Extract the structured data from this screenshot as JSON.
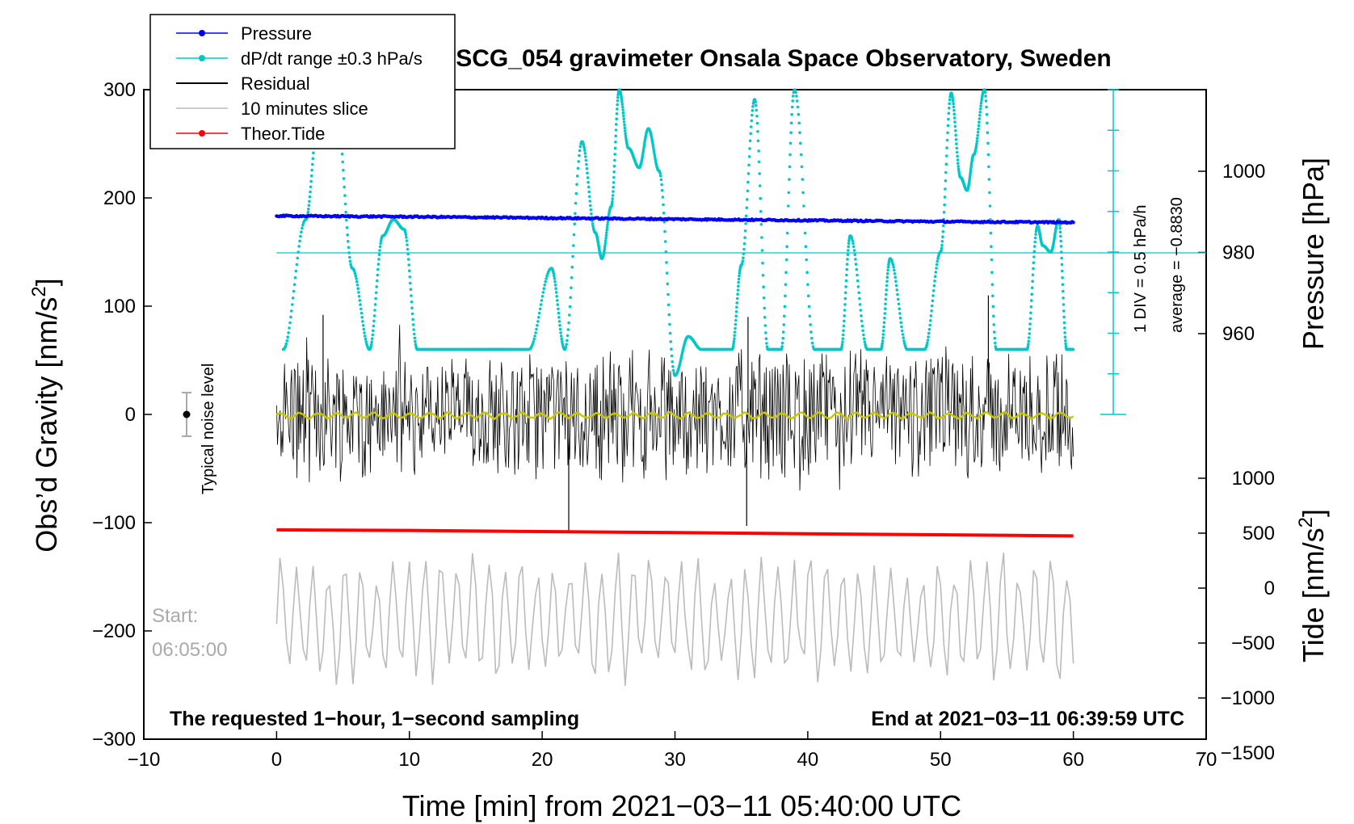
{
  "chart_data": {
    "type": "line",
    "title": "SCG_054 gravimeter Onsala Space Observatory, Sweden",
    "xlabel": "Time [min] from 2021−03−11 05:40:00 UTC",
    "ylabel_left": "Obs’d Gravity [nm/s",
    "ylabel_left_sup": "2",
    "ylabel_left_end": "]",
    "ylabel_pressure": "Pressure [hPa]",
    "ylabel_tide": "Tide [nm/s",
    "ylabel_tide_sup": "2",
    "ylabel_tide_end": "]",
    "xlim": [
      -10,
      70
    ],
    "ylim": [
      -300,
      300
    ],
    "x_ticks": [
      {
        "v": -10,
        "label": "−10"
      },
      {
        "v": 0,
        "label": "0"
      },
      {
        "v": 10,
        "label": "10"
      },
      {
        "v": 20,
        "label": "20"
      },
      {
        "v": 30,
        "label": "30"
      },
      {
        "v": 40,
        "label": "40"
      },
      {
        "v": 50,
        "label": "50"
      },
      {
        "v": 60,
        "label": "60"
      },
      {
        "v": 70,
        "label": "70"
      }
    ],
    "y_ticks": [
      {
        "v": 300,
        "label": "300"
      },
      {
        "v": 200,
        "label": "200"
      },
      {
        "v": 100,
        "label": "100"
      },
      {
        "v": 0,
        "label": "0"
      },
      {
        "v": -100,
        "label": "−100"
      },
      {
        "v": -200,
        "label": "−200"
      },
      {
        "v": -300,
        "label": "−300"
      }
    ],
    "pressure_axis": {
      "range": [
        940,
        1020
      ],
      "ticks": [
        {
          "v": 1000,
          "label": "1000"
        },
        {
          "v": 980,
          "label": "980"
        },
        {
          "v": 960,
          "label": "960"
        }
      ]
    },
    "tide_axis": {
      "range": [
        -1500,
        1500
      ],
      "ticks": [
        {
          "v": 1000,
          "label": "1000"
        },
        {
          "v": 500,
          "label": "500"
        },
        {
          "v": 0,
          "label": "0"
        },
        {
          "v": -500,
          "label": "−500"
        },
        {
          "v": -1000,
          "label": "−1000"
        },
        {
          "v": -1500,
          "label": "−1500"
        }
      ]
    },
    "legend": [
      {
        "label": "Pressure",
        "color": "#0000ff",
        "marker": true
      },
      {
        "label": "dP/dt range ±0.3 hPa/s",
        "color": "#00c8c8",
        "marker": true
      },
      {
        "label": "Residual",
        "color": "#000000",
        "marker": false
      },
      {
        "label": "10 minutes slice",
        "color": "#bbbbbb",
        "marker": false
      },
      {
        "label": "Theor.Tide",
        "color": "#ff0000",
        "marker": true
      }
    ],
    "series": [
      {
        "name": "Pressure",
        "color": "#0000ff",
        "x": [
          0,
          10,
          20,
          30,
          40,
          50,
          60
        ],
        "y_hpa": [
          989.0,
          988.8,
          988.5,
          988.2,
          987.9,
          987.6,
          987.4
        ]
      },
      {
        "name": "Theor.Tide",
        "color": "#ff0000",
        "x": [
          0,
          10,
          20,
          30,
          40,
          50,
          60
        ],
        "y_tide": [
          530,
          525,
          515,
          505,
          495,
          485,
          475
        ]
      },
      {
        "name": "dP/dt",
        "color": "#00c8c8",
        "x": [
          0.5,
          2.2,
          3.2,
          4.5,
          5.7,
          7.0,
          8.0,
          8.8,
          9.6,
          10.6,
          11.5,
          12.8,
          14.0,
          15.0,
          16.0,
          16.8,
          17.6,
          19.0,
          20.7,
          21.7,
          23.0,
          24.0,
          24.5,
          25.2,
          25.8,
          26.5,
          27.3,
          28.0,
          28.8,
          30.0,
          31.0,
          32.0,
          33.0,
          34.3,
          35.0,
          36.0,
          37.0,
          38.0,
          39.0,
          40.5,
          41.5,
          42.5,
          43.2,
          44.5,
          45.5,
          46.2,
          47.5,
          48.8,
          50.0,
          50.8,
          51.5,
          52.0,
          52.5,
          53.3,
          54.2,
          55.5,
          56.5,
          57.3,
          57.7,
          58.3,
          58.9,
          59.5,
          60.0
        ],
        "y_frac": [
          0.8,
          0.4,
          0.06,
          0.05,
          0.55,
          0.8,
          0.45,
          0.4,
          0.43,
          0.8,
          0.8,
          0.8,
          0.8,
          0.8,
          0.8,
          0.8,
          0.8,
          0.8,
          0.55,
          0.8,
          0.16,
          0.44,
          0.52,
          0.36,
          0.0,
          0.18,
          0.24,
          0.12,
          0.25,
          0.88,
          0.76,
          0.8,
          0.8,
          0.8,
          0.54,
          0.03,
          0.8,
          0.8,
          0.0,
          0.8,
          0.8,
          0.8,
          0.45,
          0.8,
          0.8,
          0.52,
          0.8,
          0.8,
          0.5,
          0.01,
          0.27,
          0.31,
          0.2,
          0.0,
          0.8,
          0.8,
          0.8,
          0.42,
          0.48,
          0.5,
          0.4,
          0.8,
          0.8
        ]
      }
    ],
    "average_label": "average = −0.8830",
    "div_label": "1 DIV = 0.5 hPa/h"
  },
  "annotations": {
    "noise_label": "Typical noise level",
    "start_label": "Start:",
    "start_time": "06:05:00",
    "bottom_left": "The requested 1−hour, 1−second sampling",
    "bottom_right": "End at 2021−03−11 06:39:59 UTC"
  },
  "colors": {
    "pressure": "#0000ff",
    "dpdt": "#00c8c8",
    "residual": "#000000",
    "slice": "#bbbbbb",
    "tide": "#ff0000",
    "smooth": "#c8c800"
  }
}
